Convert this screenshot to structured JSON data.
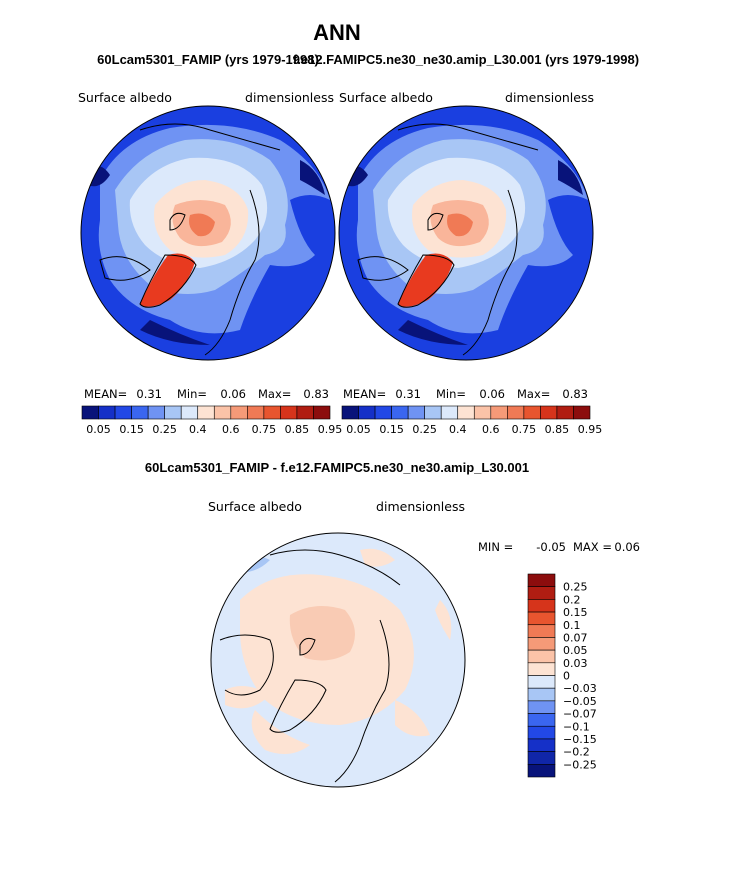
{
  "figure": {
    "title": "ANN",
    "left_case": "60Lcam5301_FAMIP (yrs 1979-1998)",
    "right_case": "f.e12.FAMIPC5.ne30_ne30.amip_L30.001 (yrs 1979-1998)",
    "diff_title": "60Lcam5301_FAMIP - f.e12.FAMIPC5.ne30_ne30.amip_L30.001"
  },
  "colors": {
    "blue_dark": "#08137a",
    "blue": "#1a3fe0",
    "blue_mid": "#3d6ff2",
    "blue_light": "#a8c6f5",
    "blue_pale": "#dce9fb",
    "peach_pale": "#fde3d3",
    "peach": "#f9b59a",
    "orange": "#f07a55",
    "red": "#e83a1f",
    "red_dark": "#8c0d0d",
    "land": "#000000"
  },
  "chart_data": [
    {
      "type": "heatmap",
      "projection": "polar-stereographic (north pole)",
      "variable": "Surface albedo",
      "units": "dimensionless",
      "case": "60Lcam5301_FAMIP (yrs 1979-1998)",
      "stats": {
        "mean_label": "MEAN=",
        "mean": "0.31",
        "min_label": "Min=",
        "min": "0.06",
        "max_label": "Max=",
        "max": "0.83"
      },
      "contour_levels": [
        "0.05",
        "0.15",
        "0.25",
        "0.4",
        "0.6",
        "0.75",
        "0.85",
        "0.95"
      ],
      "colorbar_colors": [
        "#08137a",
        "#1530c8",
        "#2248e6",
        "#3a66f0",
        "#6f93f3",
        "#a8c6f5",
        "#dce9fb",
        "#fde3d3",
        "#fbc3a8",
        "#f59a78",
        "#f07a55",
        "#e8552f",
        "#d6341b",
        "#b01d12",
        "#8c0d0d"
      ]
    },
    {
      "type": "heatmap",
      "projection": "polar-stereographic (north pole)",
      "variable": "Surface albedo",
      "units": "dimensionless",
      "case": "f.e12.FAMIPC5.ne30_ne30.amip_L30.001 (yrs 1979-1998)",
      "stats": {
        "mean_label": "MEAN=",
        "mean": "0.31",
        "min_label": "Min=",
        "min": "0.06",
        "max_label": "Max=",
        "max": "0.83"
      },
      "contour_levels": [
        "0.05",
        "0.15",
        "0.25",
        "0.4",
        "0.6",
        "0.75",
        "0.85",
        "0.95"
      ],
      "colorbar_colors": [
        "#08137a",
        "#1530c8",
        "#2248e6",
        "#3a66f0",
        "#6f93f3",
        "#a8c6f5",
        "#dce9fb",
        "#fde3d3",
        "#fbc3a8",
        "#f59a78",
        "#f07a55",
        "#e8552f",
        "#d6341b",
        "#b01d12",
        "#8c0d0d"
      ]
    },
    {
      "type": "heatmap",
      "projection": "polar-stereographic (north pole)",
      "variable": "Surface albedo",
      "units": "dimensionless",
      "case": "60Lcam5301_FAMIP - f.e12.FAMIPC5.ne30_ne30.amip_L30.001",
      "stats": {
        "min_label": "MIN =",
        "min": "-0.05",
        "max_label": "MAX =",
        "max": "0.06"
      },
      "contour_levels": [
        "0.25",
        "0.2",
        "0.15",
        "0.1",
        "0.07",
        "0.05",
        "0.03",
        "0",
        "−0.03",
        "−0.05",
        "−0.07",
        "−0.1",
        "−0.15",
        "−0.2",
        "−0.25"
      ],
      "colorbar_colors": [
        "#8c0d0d",
        "#b01d12",
        "#d6341b",
        "#e8552f",
        "#f07a55",
        "#f59a78",
        "#fbc3a8",
        "#fde3d3",
        "#dce9fb",
        "#a8c6f5",
        "#6f93f3",
        "#3a66f0",
        "#2248e6",
        "#1530c8",
        "#1026a8",
        "#08137a"
      ]
    }
  ]
}
